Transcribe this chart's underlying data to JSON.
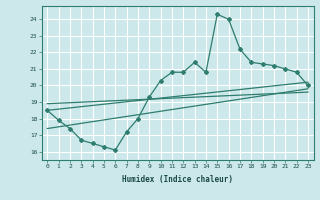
{
  "xlabel": "Humidex (Indice chaleur)",
  "ylabel": "",
  "bg_color": "#cce8ea",
  "grid_color": "#ffffff",
  "line_color": "#2e7d6e",
  "xlim": [
    -0.5,
    23.5
  ],
  "ylim": [
    15.5,
    24.8
  ],
  "x_ticks": [
    0,
    1,
    2,
    3,
    4,
    5,
    6,
    7,
    8,
    9,
    10,
    11,
    12,
    13,
    14,
    15,
    16,
    17,
    18,
    19,
    20,
    21,
    22,
    23
  ],
  "y_ticks": [
    16,
    17,
    18,
    19,
    20,
    21,
    22,
    23,
    24
  ],
  "main_line_x": [
    0,
    1,
    2,
    3,
    4,
    5,
    6,
    7,
    8,
    9,
    10,
    11,
    12,
    13,
    14,
    15,
    16,
    17,
    18,
    19,
    20,
    21,
    22,
    23
  ],
  "main_line_y": [
    18.5,
    17.9,
    17.4,
    16.7,
    16.5,
    16.3,
    16.1,
    17.2,
    18.0,
    19.3,
    20.3,
    20.8,
    20.8,
    21.4,
    20.8,
    24.3,
    24.0,
    22.2,
    21.4,
    21.3,
    21.2,
    21.0,
    20.8,
    20.0
  ],
  "reg_line1_x": [
    0,
    23
  ],
  "reg_line1_y": [
    18.5,
    20.2
  ],
  "reg_line2_x": [
    0,
    23
  ],
  "reg_line2_y": [
    18.9,
    19.6
  ],
  "reg_line3_x": [
    0,
    23
  ],
  "reg_line3_y": [
    17.4,
    19.8
  ]
}
